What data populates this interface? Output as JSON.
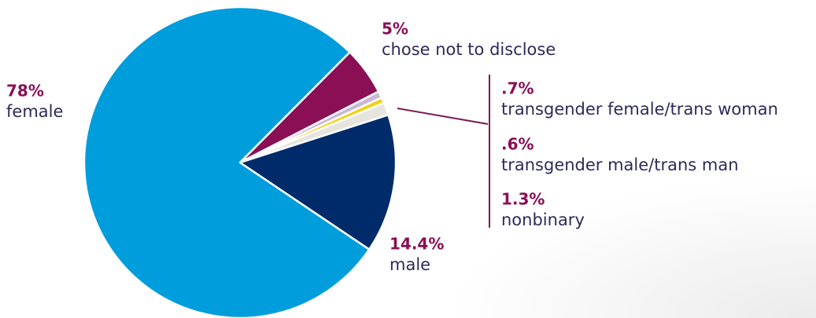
{
  "chart_data": {
    "type": "pie",
    "categories": [
      "chose not to disclose",
      "transgender female/trans woman",
      "transgender male/trans man",
      "nonbinary",
      "male",
      "female"
    ],
    "values": [
      5,
      0.7,
      0.6,
      1.3,
      14.4,
      78
    ],
    "value_labels": [
      "5%",
      ".7%",
      ".6%",
      "1.3%",
      "14.4%",
      "78%"
    ],
    "colors": [
      "#8a0f55",
      "#c9b8d6",
      "#f2d21a",
      "#e6e4de",
      "#002b6b",
      "#009ddc"
    ]
  }
}
